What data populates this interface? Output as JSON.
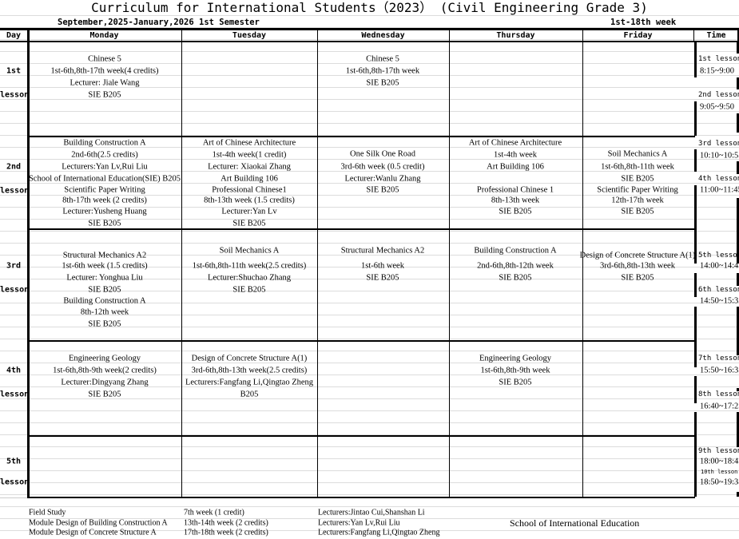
{
  "title": "Curriculum for International Students（2023） (Civil Engineering Grade 3)",
  "semester": "September,2025-January,2026  1st Semester",
  "weeks": "1st-18th week",
  "headers": {
    "day": "Day",
    "monday": "Monday",
    "tuesday": "Tuesday",
    "wednesday": "Wednesday",
    "thursday": "Thursday",
    "friday": "Friday",
    "time": "Time"
  },
  "days": [
    {
      "label": "1st",
      "lesson": "lesson"
    },
    {
      "label": "2nd",
      "lesson": "lesson"
    },
    {
      "label": "3rd",
      "lesson": "lesson"
    },
    {
      "label": "4th",
      "lesson": "lesson"
    },
    {
      "label": "5th",
      "lesson": "lesson"
    }
  ],
  "times": [
    {
      "lesson": "1st lesson",
      "time": "8:15~9:00"
    },
    {
      "lesson": "2nd lesson",
      "time": "9:05~9:50"
    },
    {
      "lesson": "3rd lesson",
      "time": "10:10~10:55"
    },
    {
      "lesson": "4th lesson",
      "time": "11:00~11:45"
    },
    {
      "lesson": "5th lesson",
      "time": "14:00~14:45"
    },
    {
      "lesson": "6th lesson",
      "time": "14:50~15:35"
    },
    {
      "lesson": "7th lesson",
      "time": "15:50~16:35"
    },
    {
      "lesson": "8th lesson",
      "time": "16:40~17:25"
    },
    {
      "lesson": "9th lesson",
      "time": "18:00~18:45"
    },
    {
      "lesson": "10th lesson",
      "time": "18:50~19:35"
    }
  ],
  "schedule": {
    "b1_monday": [
      "Chinese 5",
      "1st-6th,8th-17th week(4 credits)",
      "Lecturer: Jiale Wang",
      "SIE B205"
    ],
    "b1_wednesday": [
      "Chinese 5",
      "1st-6th,8th-17th week",
      "SIE B205"
    ],
    "b2_monday": [
      "Building Construction A",
      "2nd-6th(2.5 credits)",
      "Lecturers:Yan Lv,Rui Liu",
      "School of International Education(SIE) B205",
      "Scientific Paper Writing",
      "8th-17th week (2 credits)",
      "Lecturer:Yusheng Huang",
      "SIE B205"
    ],
    "b2_tuesday": [
      "Art of Chinese Architecture",
      "1st-4th week(1 credit)",
      "Lecturer: Xiaokai Zhang",
      "Art Building 106",
      "Professional Chinese1",
      "8th-13th week (1.5 credits)",
      "Lecturer:Yan Lv",
      "SIE B205"
    ],
    "b2_wednesday": [
      "One Silk One Road",
      "3rd-6th week (0.5 credit)",
      "Lecturer:Wanlu Zhang",
      "SIE B205"
    ],
    "b2_thursday": [
      "Art of Chinese Architecture",
      "1st-4th week",
      "Art Building 106",
      "Professional Chinese 1",
      "8th-13th week",
      "SIE B205"
    ],
    "b2_friday": [
      "Soil Mechanics A",
      "1st-6th,8th-11th week",
      "SIE B205",
      "Scientific Paper Writing",
      "12th-17th week",
      "SIE B205"
    ],
    "b3_monday": [
      "Structural Mechanics A2",
      "1st-6th week (1.5 credits)",
      "Lecturer: Yonghua Liu",
      "SIE B205",
      "Building Construction A",
      "8th-12th week",
      "SIE B205"
    ],
    "b3_tuesday": [
      "Soil Mechanics A",
      "1st-6th,8th-11th week(2.5 credits)",
      "Lecturer:Shuchao Zhang",
      "SIE B205"
    ],
    "b3_wednesday": [
      "Structural Mechanics A2",
      "1st-6th week",
      "SIE B205"
    ],
    "b3_thursday": [
      "Building Construction A",
      "2nd-6th,8th-12th week",
      "SIE B205"
    ],
    "b3_friday": [
      "Design of Concrete Structure A(1)",
      "3rd-6th,8th-13th week",
      "SIE B205"
    ],
    "b4_monday": [
      "Engineering Geology",
      "1st-6th,8th-9th week(2 credits)",
      "Lecturer:Dingyang Zhang",
      "SIE B205"
    ],
    "b4_tuesday": [
      "Design of Concrete Structure A(1)",
      "3rd-6th,8th-13th week(2.5 credits)",
      "Lecturers:Fangfang Li,Qingtao Zheng",
      "B205"
    ],
    "b4_thursday": [
      "Engineering Geology",
      "1st-6th,8th-9th week",
      "SIE B205"
    ]
  },
  "footer": {
    "rows": [
      {
        "course": "Field Study",
        "weeks": "7th week (1 credit)",
        "lecturers": "Lecturers:Jintao Cui,Shanshan Li"
      },
      {
        "course": "Module Design of Building Construction A",
        "weeks": "13th-14th week (2 credits)",
        "lecturers": "Lecturers:Yan Lv,Rui Liu"
      },
      {
        "course": "Module Design of Concrete Structure A",
        "weeks": "17th-18th week (2 credits)",
        "lecturers": "Lecturers:Fangfang Li,Qingtao Zheng"
      }
    ],
    "school": "School of International Education"
  }
}
